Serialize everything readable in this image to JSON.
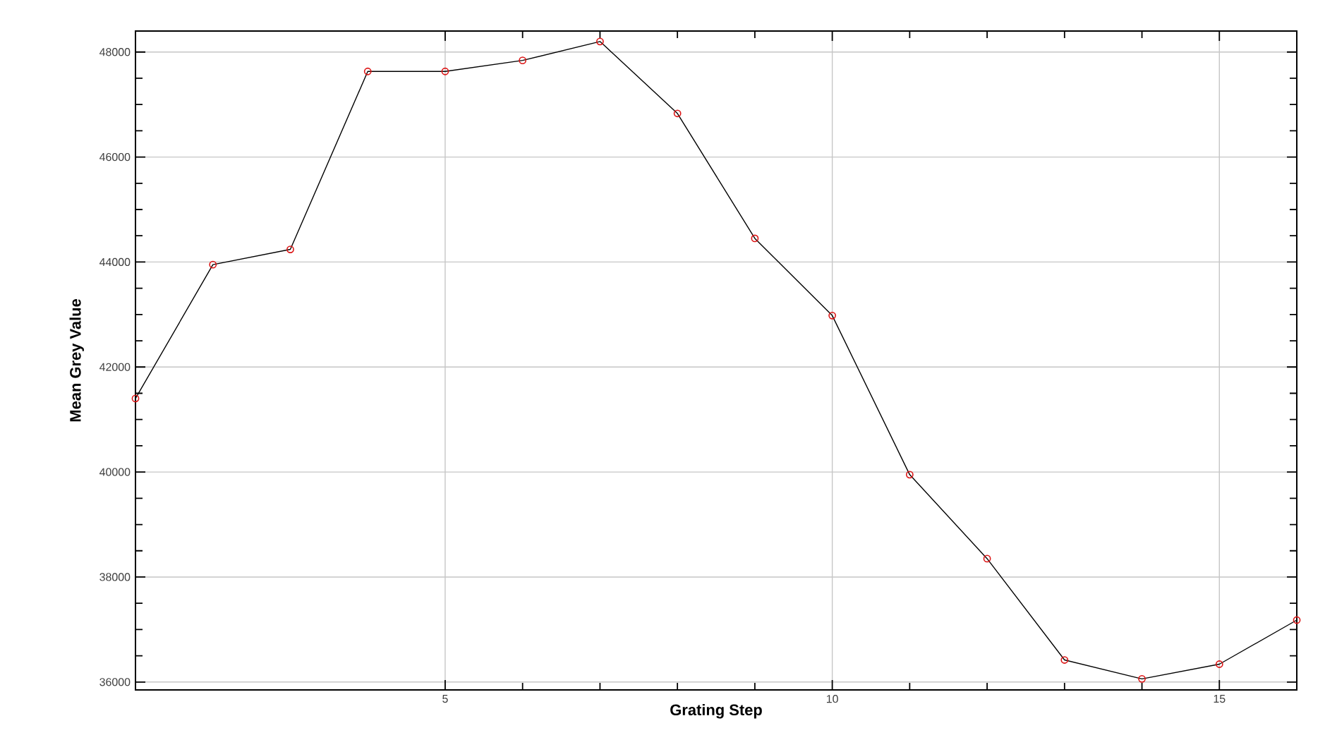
{
  "chart_data": {
    "type": "line",
    "xlabel": "Grating Step",
    "ylabel": "Mean Grey Value",
    "x": [
      1,
      2,
      3,
      4,
      5,
      6,
      7,
      8,
      9,
      10,
      11,
      12,
      13,
      14,
      15,
      16
    ],
    "series": [
      {
        "color": "#000000",
        "values": [
          41400,
          43950,
          44240,
          47630,
          47630,
          47840,
          48200,
          46830,
          44450,
          42980,
          39950,
          38350,
          36420,
          36060,
          36340,
          37180
        ]
      }
    ],
    "xlim": [
      1,
      16
    ],
    "ylim": [
      35850,
      48400
    ],
    "xticks": [
      5,
      10,
      15
    ],
    "yticks": [
      36000,
      38000,
      40000,
      42000,
      44000,
      46000,
      48000
    ],
    "grid": true,
    "marker": "circle",
    "line_style": "solid"
  }
}
